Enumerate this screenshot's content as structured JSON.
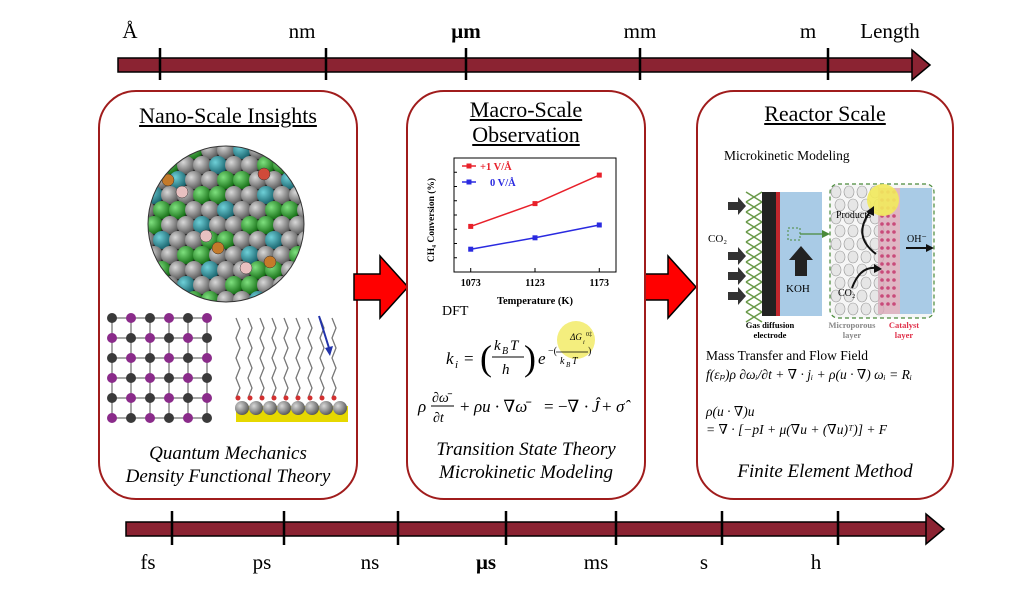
{
  "length_scale": {
    "labels": [
      "Å",
      "nm",
      "μm",
      "mm",
      "m"
    ],
    "title": "Length"
  },
  "time_scale": {
    "labels": [
      "fs",
      "ps",
      "ns",
      "μs",
      "ms",
      "s",
      "h"
    ]
  },
  "nano": {
    "title": "Nano-Scale Insights",
    "foot1": "Quantum Mechanics",
    "foot2": "Density Functional Theory"
  },
  "macro": {
    "title1": "Macro-Scale",
    "title2": "Observation",
    "dft_label": "DFT",
    "eq1_lhs": "k",
    "eq2": "ρ ∂ω̄/∂t + ρu · ∇ω̄ = −∇ · Ĵ + σ̂",
    "foot1": "Transition State Theory",
    "foot2": "Microkinetic Modeling"
  },
  "reactor": {
    "title": "Reactor Scale",
    "microkinetic_label": "Microkinetic Modeling",
    "products_label": "Products",
    "oh_label": "OH⁻",
    "co2_left": "CO₂",
    "co2_inner": "CO₂",
    "koh_label": "KOH",
    "gde_label1": "Gas diffusion",
    "gde_label2": "electrode",
    "micro_label1": "Microporous",
    "micro_label2": "layer",
    "cat_label1": "Catalyst",
    "cat_label2": "layer",
    "mass_transfer_label": "Mass Transfer and Flow Field",
    "eq1": "f(εₚ)ρ ∂ωᵢ/∂t + ∇ · jᵢ + ρ(u · ∇) ωᵢ = Rᵢ",
    "eq2a": "ρ(u · ∇)u",
    "eq2b": "= ∇ · [−pI + μ(∇u + (∇u)ᵀ)] + F",
    "foot": "Finite Element Method"
  },
  "chart_data": {
    "type": "line",
    "x": [
      1073,
      1123,
      1173
    ],
    "series": [
      {
        "name": "+1 V/Å",
        "values": [
          32,
          48,
          68
        ],
        "color": "#e8202a"
      },
      {
        "name": "0 V/Å",
        "values": [
          16,
          24,
          33
        ],
        "color": "#2a2ae0"
      }
    ],
    "xlabel": "Temperature (K)",
    "ylabel": "CH₄ Conversion (%)",
    "tick_labels_x": [
      "1073",
      "1123",
      "1173"
    ],
    "ylim": [
      0,
      80
    ],
    "xlim": [
      1060,
      1186
    ],
    "grid": false,
    "legend": "top-left"
  },
  "colors": {
    "arrow_bar": "#8b2332",
    "panel_border": "#a01c1c",
    "connector": "#ff0000"
  }
}
